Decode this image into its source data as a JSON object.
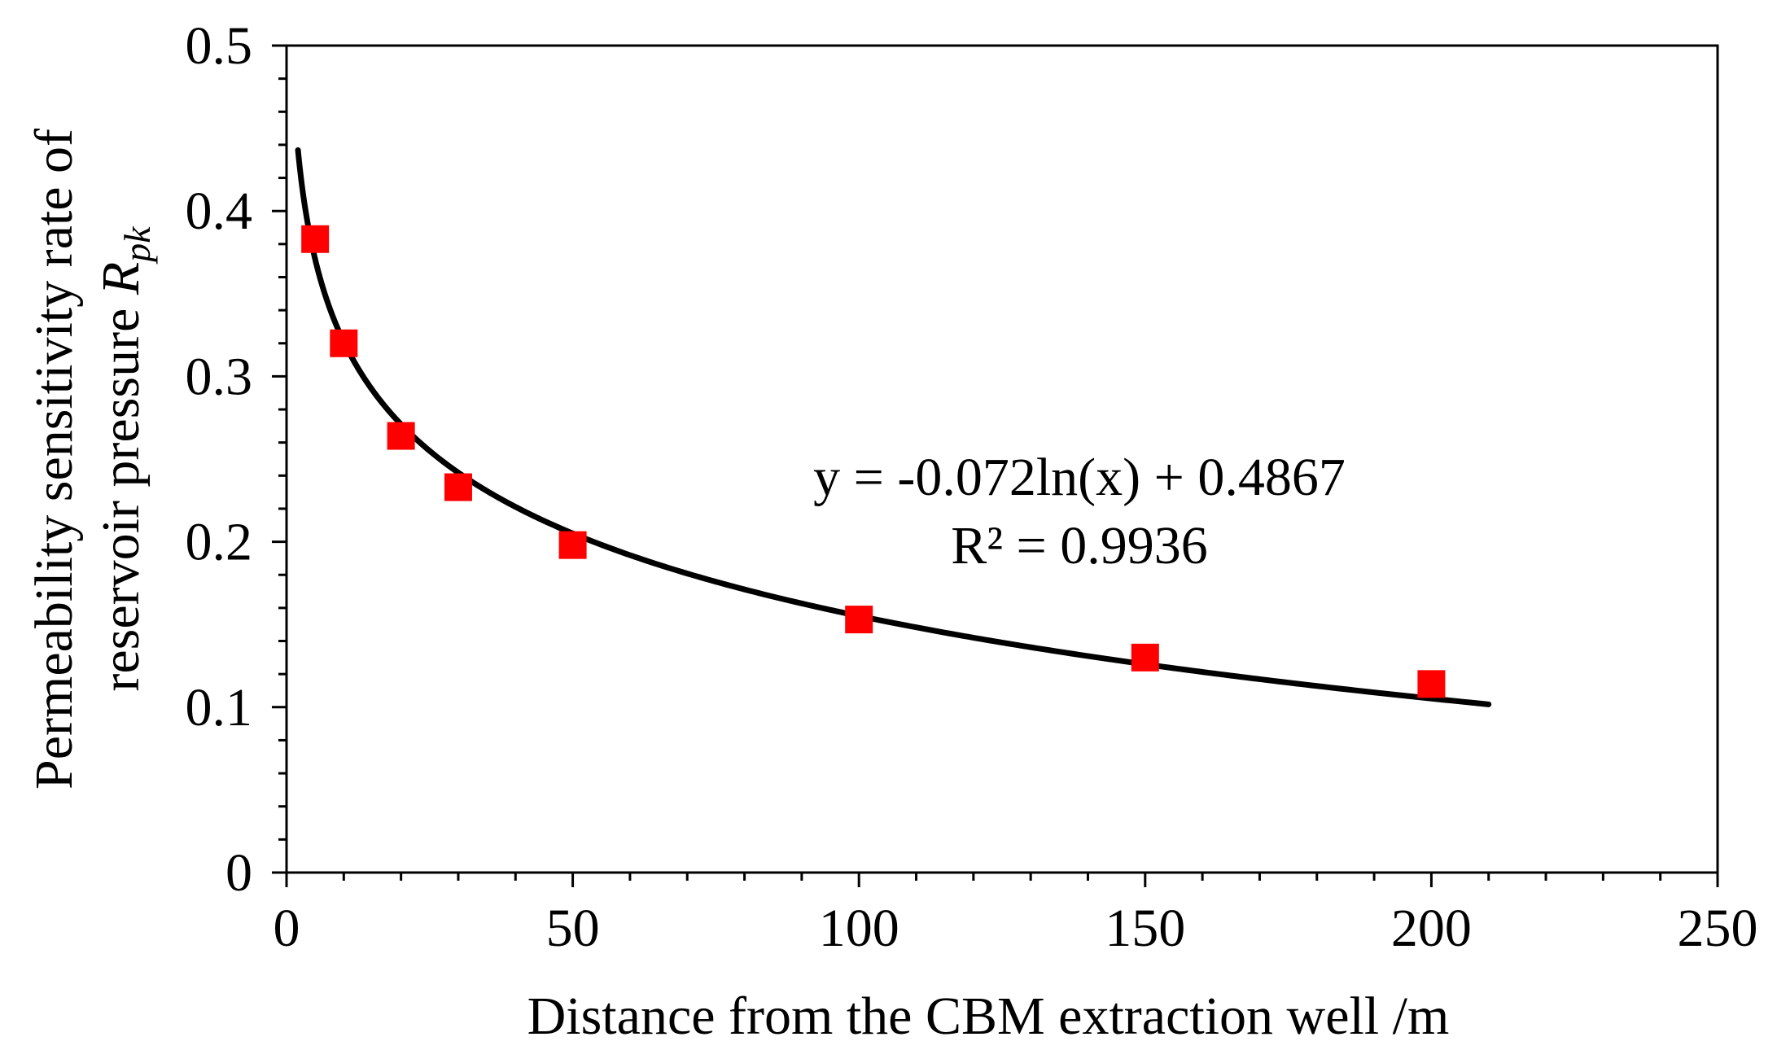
{
  "chart_data": {
    "type": "scatter",
    "title": "",
    "xlabel": "Distance from the CBM extraction well /m",
    "ylabel_line1": "Permeability sensitivity rate of",
    "ylabel_line2_prefix": "reservoir pressure ",
    "ylabel_symbol": "R",
    "ylabel_subscript": "pk",
    "xlim": [
      0,
      250
    ],
    "ylim": [
      0,
      0.5
    ],
    "x_major_ticks": [
      0,
      50,
      100,
      150,
      200,
      250
    ],
    "x_tick_labels": [
      "0",
      "50",
      "100",
      "150",
      "200",
      "250"
    ],
    "x_minor_step": 10,
    "y_major_ticks": [
      0,
      0.1,
      0.2,
      0.3,
      0.4,
      0.5
    ],
    "y_tick_labels": [
      "0",
      "0.1",
      "0.2",
      "0.3",
      "0.4",
      "0.5"
    ],
    "y_minor_step": 0.02,
    "grid": false,
    "series": [
      {
        "name": "Rpk",
        "marker": "square",
        "color": "#ff0000",
        "x": [
          5,
          10,
          20,
          30,
          50,
          100,
          150,
          200
        ],
        "y": [
          0.383,
          0.32,
          0.264,
          0.233,
          0.198,
          0.153,
          0.13,
          0.114
        ]
      }
    ],
    "trendline": {
      "type": "logarithmic",
      "a": -0.072,
      "b": 0.4867,
      "x_range": [
        2,
        210
      ],
      "color": "#000000",
      "equation": "y = -0.072ln(x) + 0.4867",
      "r_squared": "R² = 0.9936"
    }
  }
}
